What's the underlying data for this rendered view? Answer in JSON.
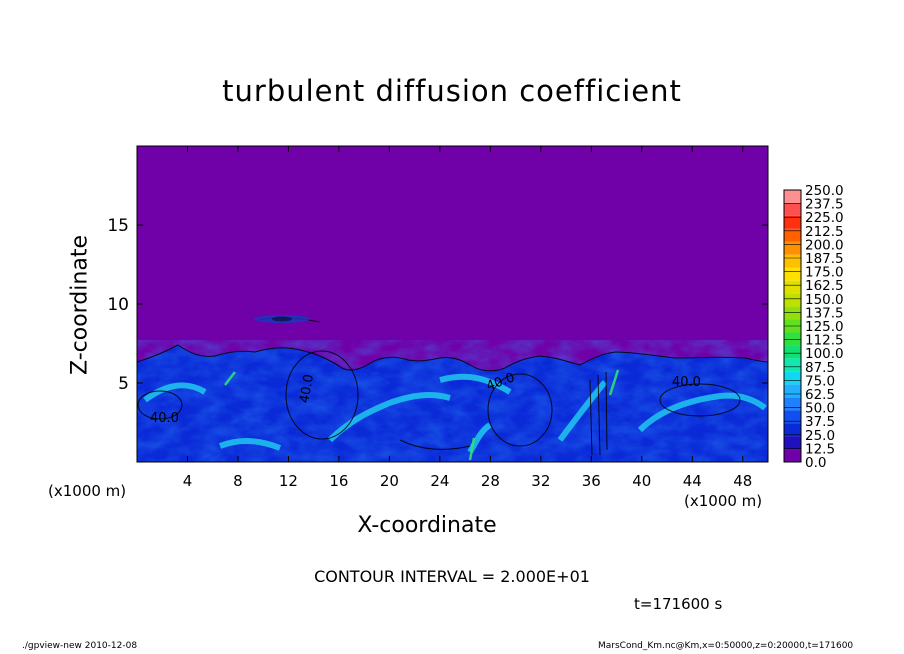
{
  "chart_data": {
    "type": "heatmap",
    "title": "turbulent diffusion coefficient",
    "xlabel": "X-coordinate",
    "ylabel": "Z-coordinate",
    "x_unit_label": "(x1000 m)",
    "xlim": [
      0,
      50
    ],
    "ylim": [
      0,
      20
    ],
    "x_ticks": [
      4,
      8,
      12,
      16,
      20,
      24,
      28,
      32,
      36,
      40,
      44,
      48
    ],
    "y_ticks": [
      5,
      10,
      15
    ],
    "colorbar": {
      "levels": [
        0.0,
        12.5,
        25.0,
        37.5,
        50.0,
        62.5,
        75.0,
        87.5,
        100.0,
        112.5,
        125.0,
        137.5,
        150.0,
        162.5,
        175.0,
        187.5,
        200.0,
        212.5,
        225.0,
        237.5,
        250.0
      ],
      "labels": [
        "0.0",
        "12.5",
        "25.0",
        "37.5",
        "50.0",
        "62.5",
        "75.0",
        "87.5",
        "100.0",
        "112.5",
        "125.0",
        "137.5",
        "150.0",
        "162.5",
        "175.0",
        "187.5",
        "200.0",
        "212.5",
        "225.0",
        "237.5",
        "250.0"
      ],
      "colors": [
        "#7000a8",
        "#2010c0",
        "#0a2ad8",
        "#1050f0",
        "#2080ff",
        "#20b0ff",
        "#10d8f0",
        "#10e8b0",
        "#10e070",
        "#30e040",
        "#60e020",
        "#90e010",
        "#c0e000",
        "#e0e000",
        "#ffe000",
        "#ffc000",
        "#ff9000",
        "#ff6000",
        "#ff3010",
        "#ff5050",
        "#ff9090"
      ]
    },
    "contour_labels": [
      "40.0",
      "40.0",
      "40.0",
      "40.0"
    ],
    "background_value": 0.0,
    "turbulent_layer_top": 6.5,
    "cloud_patch": {
      "x": 12,
      "z": 9.2
    }
  },
  "contour_interval_text": "CONTOUR INTERVAL = 2.000E+01",
  "time_text": "t=171600 s",
  "footer_left": "./gpview-new 2010-12-08",
  "footer_right": "MarsCond_Km.nc@Km,x=0:50000,z=0:20000,t=171600"
}
